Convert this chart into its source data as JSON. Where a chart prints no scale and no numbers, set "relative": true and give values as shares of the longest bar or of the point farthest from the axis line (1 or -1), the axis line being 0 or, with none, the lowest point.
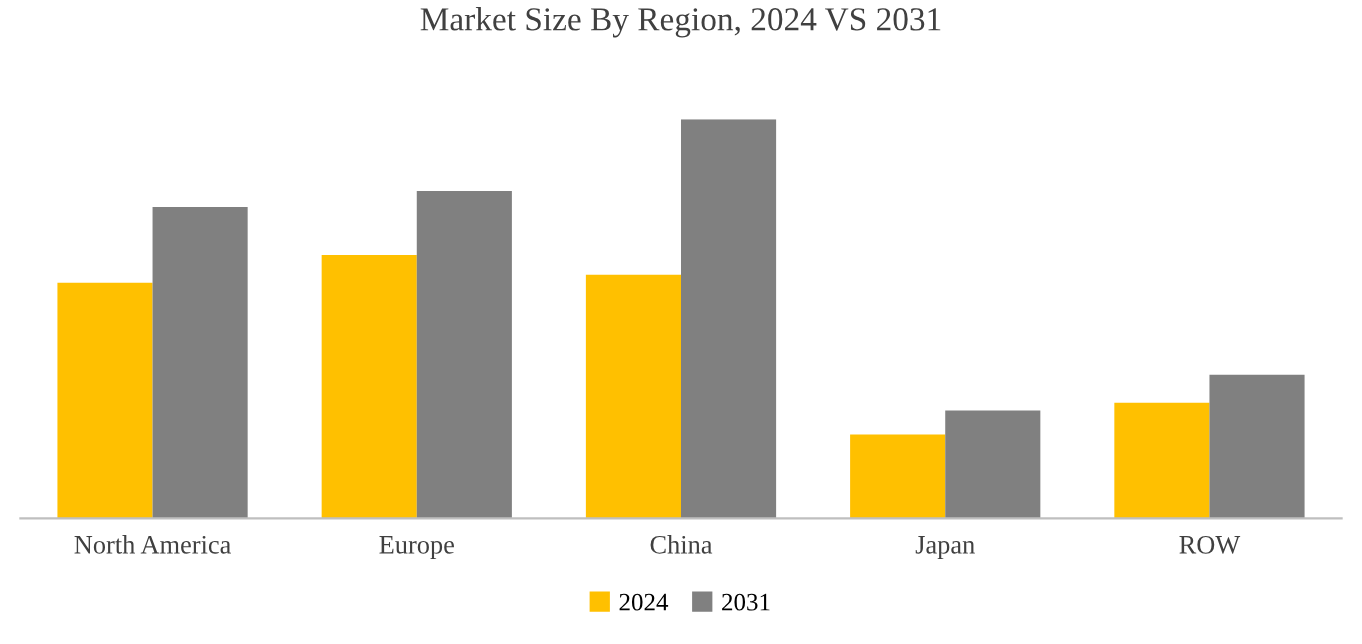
{
  "chart_data": {
    "type": "bar",
    "title": "Market Size By Region, 2024 VS 2031",
    "relative": true,
    "categories": [
      "North America",
      "Europe",
      "China",
      "Japan",
      "ROW"
    ],
    "series": [
      {
        "name": "2024",
        "color": "#ffc000",
        "values": [
          0.59,
          0.66,
          0.61,
          0.21,
          0.29
        ]
      },
      {
        "name": "2031",
        "color": "#808080",
        "values": [
          0.78,
          0.82,
          1,
          0.27,
          0.36
        ]
      }
    ],
    "legend": "bottom",
    "grid": false
  }
}
